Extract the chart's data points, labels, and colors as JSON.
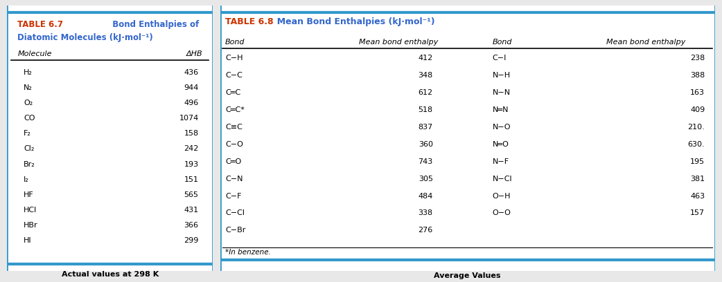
{
  "table67_title_num": "TABLE 6.7",
  "table67_title_rest": "  Bond Enthalpies of\nDiatomic Molecules (kJ·mol⁻¹)",
  "table67_col1_header": "Molecule",
  "table67_col2_header": "ΔHB",
  "table67_rows": [
    [
      "H₂",
      "436"
    ],
    [
      "N₂",
      "944"
    ],
    [
      "O₂",
      "496"
    ],
    [
      "CO",
      "1074"
    ],
    [
      "F₂",
      "158"
    ],
    [
      "Cl₂",
      "242"
    ],
    [
      "Br₂",
      "193"
    ],
    [
      "I₂",
      "151"
    ],
    [
      "HF",
      "565"
    ],
    [
      "HCl",
      "431"
    ],
    [
      "HBr",
      "366"
    ],
    [
      "HI",
      "299"
    ]
  ],
  "table67_footnote": "Actual values at 298 K",
  "table68_title_num": "TABLE 6.8",
  "table68_title_rest": "  Mean Bond Enthalpies (kJ·mol⁻¹)",
  "table68_col_headers": [
    "Bond",
    "Mean bond enthalpy",
    "Bond",
    "Mean bond enthalpy"
  ],
  "table68_left_rows": [
    [
      "C−H",
      "412"
    ],
    [
      "C−C",
      "348"
    ],
    [
      "C═C",
      "612"
    ],
    [
      "C═C*",
      "518"
    ],
    [
      "C≡C",
      "837"
    ],
    [
      "C−O",
      "360"
    ],
    [
      "C═O",
      "743"
    ],
    [
      "C−N",
      "305"
    ],
    [
      "C−F",
      "484"
    ],
    [
      "C−Cl",
      "338"
    ],
    [
      "C−Br",
      "276"
    ]
  ],
  "table68_right_rows": [
    [
      "C−I",
      "238"
    ],
    [
      "N−H",
      "388"
    ],
    [
      "N−N",
      "163"
    ],
    [
      "N═N",
      "409"
    ],
    [
      "N−O",
      "210."
    ],
    [
      "N═O",
      "630."
    ],
    [
      "N−F",
      "195"
    ],
    [
      "N−Cl",
      "381"
    ],
    [
      "O−H",
      "463"
    ],
    [
      "O−O",
      "157"
    ],
    [
      "",
      ""
    ]
  ],
  "table68_footnote": "*In benzene.",
  "table68_caption": "Average Values",
  "border_color_top": "#3399CC",
  "border_color_bottom": "#3399CC",
  "title_num_color": "#CC3300",
  "title_rest_color": "#3366CC",
  "header_color": "#333333",
  "bg_color": "#FFFFFF",
  "outer_bg": "#E8E8E8"
}
